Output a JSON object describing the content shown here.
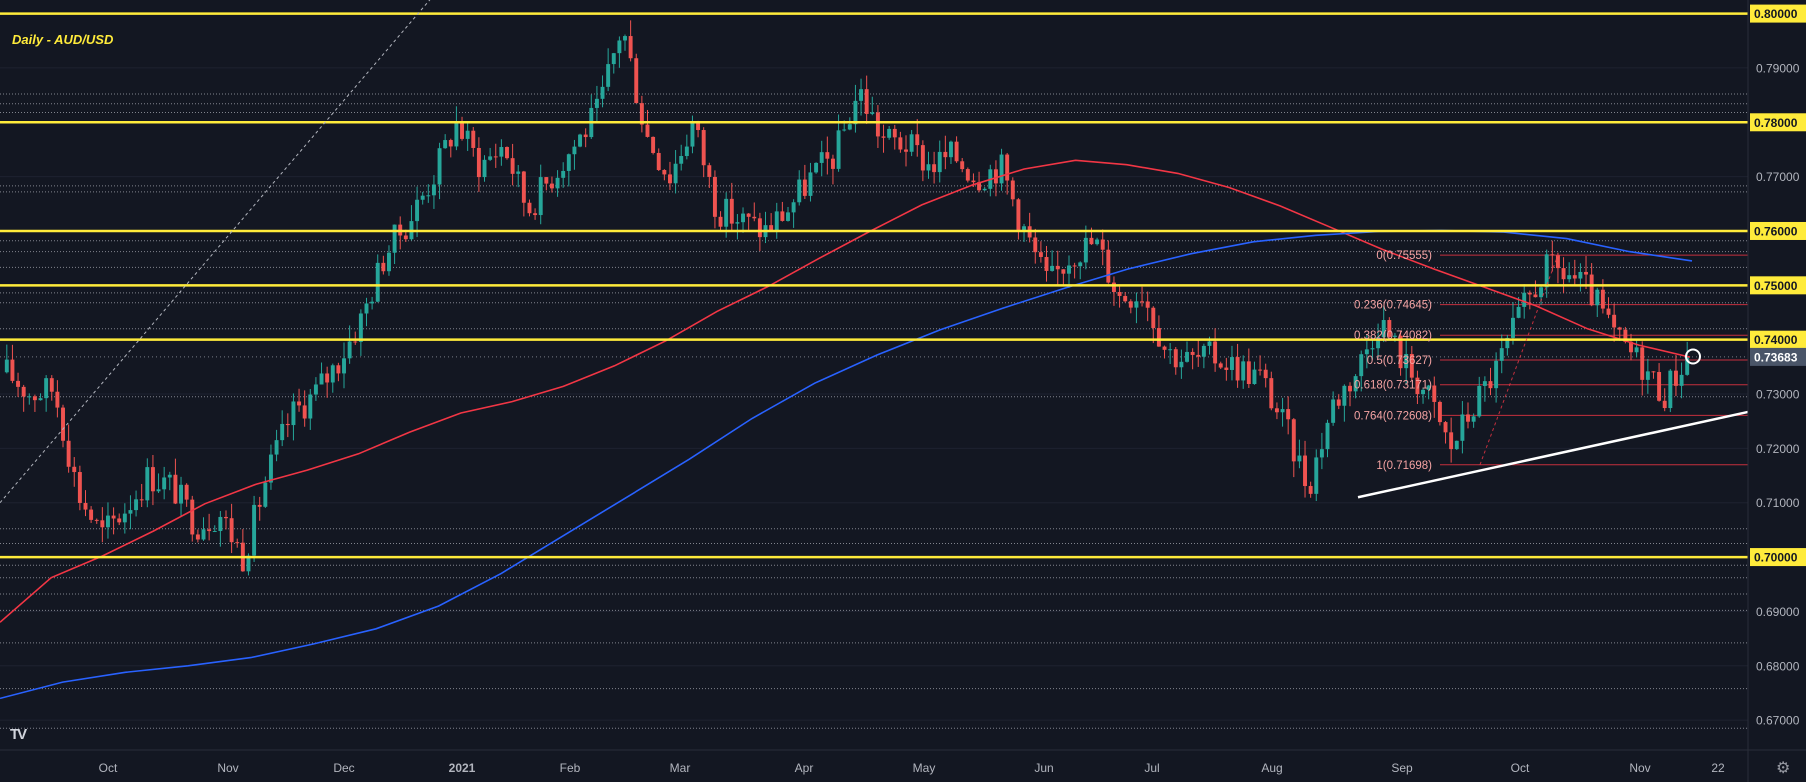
{
  "chart_data": {
    "type": "candlestick",
    "title": "Daily - AUD/USD",
    "x_labels": [
      "Oct",
      "Nov",
      "Dec",
      "2021",
      "Feb",
      "Mar",
      "Apr",
      "May",
      "Jun",
      "Jul",
      "Aug",
      "Sep",
      "Oct",
      "Nov",
      "22"
    ],
    "y_ticks": [
      "0.80000",
      "0.79000",
      "0.78000",
      "0.77000",
      "0.76000",
      "0.75000",
      "0.74000",
      "0.73000",
      "0.72000",
      "0.71000",
      "0.70000",
      "0.69000",
      "0.68000",
      "0.67000"
    ],
    "ylim": [
      0.6645,
      0.8025
    ],
    "current_price": "0.73683",
    "highlighted_levels": [
      "0.80000",
      "0.78000",
      "0.76000",
      "0.75000",
      "0.74000",
      "0.70000"
    ],
    "horizontal_lines": [
      0.8,
      0.78,
      0.76,
      0.75,
      0.74,
      0.7
    ],
    "dotted_levels": [
      0.7852,
      0.7834,
      0.7818,
      0.7683,
      0.7672,
      0.7582,
      0.7562,
      0.7533,
      0.7486,
      0.7468,
      0.742,
      0.7295,
      0.7052,
      0.7025,
      0.6985,
      0.6962,
      0.6932,
      0.6902,
      0.6842,
      0.6758,
      0.6685
    ],
    "fibonacci": [
      {
        "label": "0(0.75555)",
        "value": 0.75555
      },
      {
        "label": "0.236(0.74645)",
        "value": 0.74645
      },
      {
        "label": "0.382(0.74082)",
        "value": 0.74082
      },
      {
        "label": "0.5(0.73627)",
        "value": 0.73627
      },
      {
        "label": "0.618(0.73171)",
        "value": 0.73171
      },
      {
        "label": "0.764(0.72608)",
        "value": 0.72608
      },
      {
        "label": "1(0.71698)",
        "value": 0.71698
      }
    ],
    "ma_red": [
      0.688,
      0.6962,
      0.7002,
      0.7048,
      0.7098,
      0.7134,
      0.716,
      0.719,
      0.723,
      0.7265,
      0.7286,
      0.7314,
      0.7352,
      0.7398,
      0.7452,
      0.7498,
      0.755,
      0.76,
      0.7648,
      0.7685,
      0.7714,
      0.773,
      0.7722,
      0.7706,
      0.768,
      0.7646,
      0.7606,
      0.7566,
      0.753,
      0.7496,
      0.7462,
      0.742,
      0.739,
      0.7368
    ],
    "ma_blue": [
      0.674,
      0.677,
      0.6788,
      0.68,
      0.6815,
      0.684,
      0.6868,
      0.691,
      0.697,
      0.704,
      0.711,
      0.718,
      0.7255,
      0.732,
      0.7372,
      0.7418,
      0.7458,
      0.7495,
      0.753,
      0.7558,
      0.758,
      0.7592,
      0.7599,
      0.7601,
      0.7598,
      0.7586,
      0.7562,
      0.7545
    ],
    "price_path": [
      0.734,
      0.73,
      0.731,
      0.712,
      0.704,
      0.709,
      0.715,
      0.713,
      0.706,
      0.708,
      0.7,
      0.715,
      0.726,
      0.73,
      0.736,
      0.744,
      0.756,
      0.762,
      0.77,
      0.78,
      0.772,
      0.776,
      0.764,
      0.77,
      0.776,
      0.782,
      0.798,
      0.778,
      0.77,
      0.78,
      0.764,
      0.762,
      0.76,
      0.764,
      0.77,
      0.774,
      0.786,
      0.777,
      0.776,
      0.772,
      0.774,
      0.77,
      0.772,
      0.76,
      0.75,
      0.756,
      0.758,
      0.748,
      0.749,
      0.738,
      0.736,
      0.737,
      0.735,
      0.733,
      0.724,
      0.713,
      0.728,
      0.734,
      0.744,
      0.736,
      0.73,
      0.72,
      0.728,
      0.735,
      0.745,
      0.753,
      0.752,
      0.748,
      0.74,
      0.736,
      0.73,
      0.7368
    ]
  },
  "icons": {
    "logo": "tradingview-logo-icon",
    "settings": "gear-icon"
  },
  "colors": {
    "background": "#131722",
    "highlight_line": "#ffeb3b",
    "ma_red": "#f23645",
    "ma_blue": "#2962ff",
    "bull": "#26a69a",
    "bear": "#ef5350",
    "fib": "#f5a3a3"
  }
}
